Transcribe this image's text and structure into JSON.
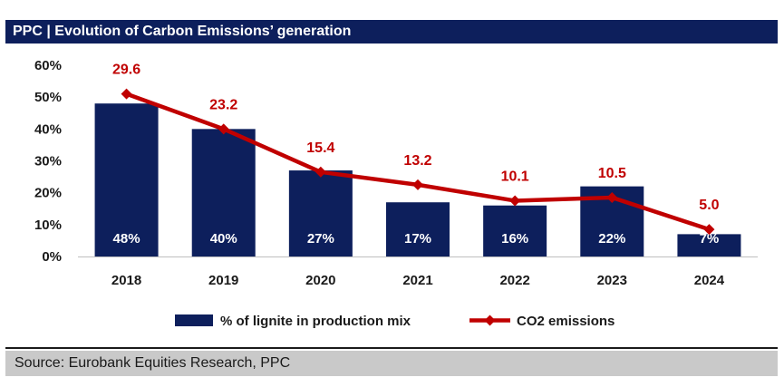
{
  "header": {
    "title": "PPC | Evolution of Carbon Emissions’ generation"
  },
  "footer": {
    "source": "Source: Eurobank Equities Research, PPC"
  },
  "colors": {
    "bar": "#0d1f5c",
    "line": "#c00000",
    "header_bg": "#0d1f5c",
    "source_bg": "#c9c9c9"
  },
  "chart_data": {
    "type": "bar+line",
    "title": "PPC | Evolution of Carbon Emissions’ generation",
    "categories": [
      "2018",
      "2019",
      "2020",
      "2021",
      "2022",
      "2023",
      "2024"
    ],
    "y_axis": {
      "min": 0,
      "max": 60,
      "step": 10,
      "tick_labels": [
        "0%",
        "10%",
        "20%",
        "30%",
        "40%",
        "50%",
        "60%"
      ]
    },
    "series": [
      {
        "name": "% of lignite in production mix",
        "type": "bar",
        "values": [
          48,
          40,
          27,
          17,
          16,
          22,
          7
        ],
        "labels": [
          "48%",
          "40%",
          "27%",
          "17%",
          "16%",
          "22%",
          "7%"
        ]
      },
      {
        "name": "CO2 emissions",
        "type": "line",
        "marker": "diamond",
        "values": [
          29.6,
          23.2,
          15.4,
          13.2,
          10.1,
          10.5,
          5.0
        ],
        "labels": [
          "29.6",
          "23.2",
          "15.4",
          "13.2",
          "10.1",
          "10.5",
          "5.0"
        ],
        "plotted_percent": [
          51,
          40,
          26.5,
          22.5,
          17.5,
          18.5,
          8.5
        ]
      }
    ],
    "legend": "bottom-center"
  }
}
